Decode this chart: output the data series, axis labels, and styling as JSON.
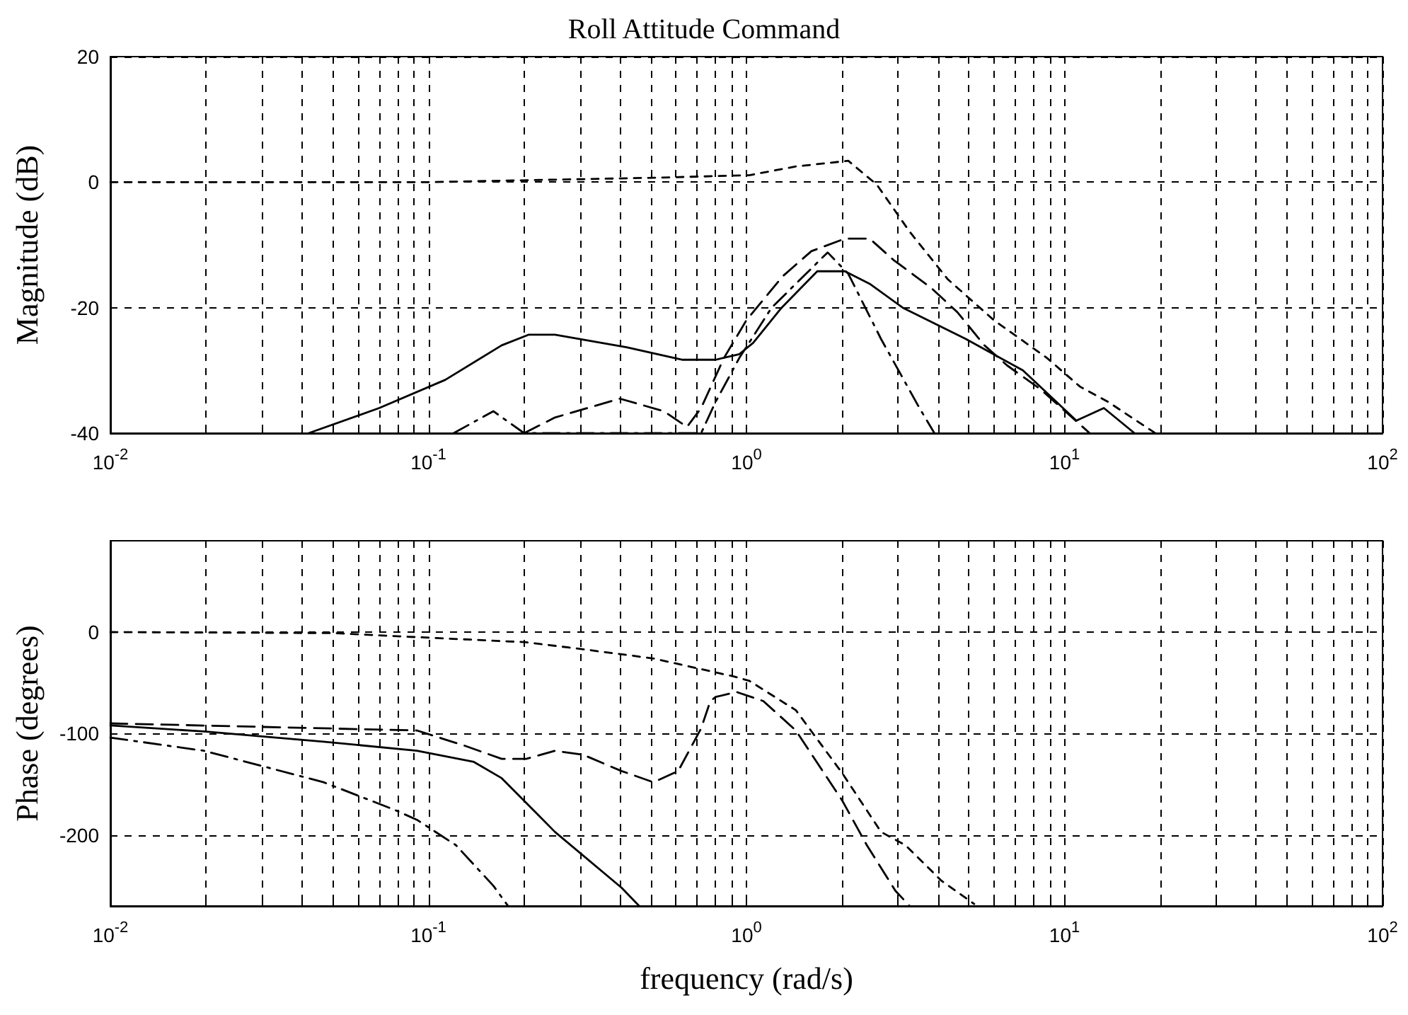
{
  "chart_data": [
    {
      "type": "line",
      "title": "Roll Attitude Command",
      "ylabel": "Magnitude (dB)",
      "log": "x",
      "grid": true,
      "marker": "none",
      "xlim": [
        0.01,
        100
      ],
      "ylim": [
        -40,
        20
      ],
      "yticks": [
        -40,
        -20,
        0,
        20
      ],
      "xticks": [
        {
          "value": 0.01,
          "label": "10$^{-2}$"
        },
        {
          "value": 0.02,
          "label": null
        },
        {
          "value": 0.03,
          "label": null
        },
        {
          "value": 0.04,
          "label": null
        },
        {
          "value": 0.05,
          "label": null
        },
        {
          "value": 0.06,
          "label": null
        },
        {
          "value": 0.07,
          "label": null
        },
        {
          "value": 0.08,
          "label": null
        },
        {
          "value": 0.09,
          "label": null
        },
        {
          "value": 0.1,
          "label": "10$^{-1}$"
        },
        {
          "value": 0.2,
          "label": null
        },
        {
          "value": 0.3,
          "label": null
        },
        {
          "value": 0.4,
          "label": null
        },
        {
          "value": 0.5,
          "label": null
        },
        {
          "value": 0.6,
          "label": null
        },
        {
          "value": 0.7,
          "label": null
        },
        {
          "value": 0.8,
          "label": null
        },
        {
          "value": 0.9,
          "label": null
        },
        {
          "value": 1,
          "label": "10$^{0}$"
        },
        {
          "value": 2,
          "label": null
        },
        {
          "value": 3,
          "label": null
        },
        {
          "value": 4,
          "label": null
        },
        {
          "value": 5,
          "label": null
        },
        {
          "value": 6,
          "label": null
        },
        {
          "value": 7,
          "label": null
        },
        {
          "value": 8,
          "label": null
        },
        {
          "value": 9,
          "label": null
        },
        {
          "value": 10,
          "label": "10$^{1}$"
        },
        {
          "value": 20,
          "label": null
        },
        {
          "value": 30,
          "label": null
        },
        {
          "value": 40,
          "label": null
        },
        {
          "value": 50,
          "label": null
        },
        {
          "value": 60,
          "label": null
        },
        {
          "value": 70,
          "label": null
        },
        {
          "value": 80,
          "label": null
        },
        {
          "value": 90,
          "label": null
        },
        {
          "value": 100,
          "label": "10$^{2}$"
        }
      ],
      "series": [
        {
          "color": "#000000",
          "line_style": "solid",
          "x": [
            0.042,
            0.07,
            0.113,
            0.17,
            0.207,
            0.25,
            0.42,
            0.63,
            0.8,
            0.95,
            1.05,
            1.29,
            1.67,
            2.04,
            2.44,
            3.1,
            4.9,
            7.4,
            10.9,
            13.3,
            16.6
          ],
          "values": [
            -40,
            -36,
            -31.5,
            -26,
            -24.3,
            -24.3,
            -26.3,
            -28.3,
            -28.3,
            -27.4,
            -25.6,
            -20,
            -14.2,
            -14.2,
            -16.2,
            -20,
            -25,
            -30,
            -38,
            -36,
            -40
          ]
        },
        {
          "color": "#000000",
          "line_style": "dotted",
          "x": [
            0.01,
            0.1,
            0.51,
            1.02,
            1.43,
            2.09,
            2.57,
            3.26,
            4.3,
            6,
            8.8,
            11.2,
            13.7,
            19.3
          ],
          "values": [
            0,
            0,
            0.7,
            1.1,
            2.5,
            3.4,
            -0.4,
            -7.9,
            -15.5,
            -22,
            -28,
            -32.6,
            -35,
            -40
          ]
        },
        {
          "color": "#000000",
          "line_style": "dashed",
          "x": [
            0.2,
            0.25,
            0.4,
            0.55,
            0.65,
            0.72,
            0.85,
            1,
            1.3,
            1.6,
            2.04,
            2.44,
            2.9,
            3.8,
            4.6,
            5.6,
            6.6,
            8.4,
            10,
            12
          ],
          "values": [
            -40,
            -37.5,
            -34.5,
            -36.5,
            -39,
            -36,
            -28,
            -22,
            -15,
            -11,
            -9,
            -9,
            -12.4,
            -16.8,
            -20.7,
            -26,
            -29.2,
            -33,
            -36.4,
            -40
          ]
        },
        {
          "color": "#000000",
          "line_style": "dashdot",
          "x": [
            0.12,
            0.16,
            0.2,
            0.72,
            0.8,
            0.95,
            1.2,
            1.8,
            2.09,
            2.65,
            3.5,
            3.9
          ],
          "values": [
            -40,
            -36.5,
            -40,
            -40,
            -35,
            -28,
            -20,
            -11.2,
            -14.6,
            -25,
            -36,
            -40
          ]
        }
      ]
    },
    {
      "type": "line",
      "xlabel": "frequency (rad/s)",
      "ylabel": "Phase (degrees)",
      "log": "x",
      "grid": true,
      "marker": "none",
      "xlim": [
        0.01,
        100
      ],
      "ylim": [
        -270,
        90
      ],
      "yticks": [
        -200,
        -100,
        0
      ],
      "xticks": [
        {
          "value": 0.01,
          "label": "10$^{-2}$"
        },
        {
          "value": 0.02,
          "label": null
        },
        {
          "value": 0.03,
          "label": null
        },
        {
          "value": 0.04,
          "label": null
        },
        {
          "value": 0.05,
          "label": null
        },
        {
          "value": 0.06,
          "label": null
        },
        {
          "value": 0.07,
          "label": null
        },
        {
          "value": 0.08,
          "label": null
        },
        {
          "value": 0.09,
          "label": null
        },
        {
          "value": 0.1,
          "label": "10$^{-1}$"
        },
        {
          "value": 0.2,
          "label": null
        },
        {
          "value": 0.3,
          "label": null
        },
        {
          "value": 0.4,
          "label": null
        },
        {
          "value": 0.5,
          "label": null
        },
        {
          "value": 0.6,
          "label": null
        },
        {
          "value": 0.7,
          "label": null
        },
        {
          "value": 0.8,
          "label": null
        },
        {
          "value": 0.9,
          "label": null
        },
        {
          "value": 1,
          "label": "10$^{0}$"
        },
        {
          "value": 2,
          "label": null
        },
        {
          "value": 3,
          "label": null
        },
        {
          "value": 4,
          "label": null
        },
        {
          "value": 5,
          "label": null
        },
        {
          "value": 6,
          "label": null
        },
        {
          "value": 7,
          "label": null
        },
        {
          "value": 8,
          "label": null
        },
        {
          "value": 9,
          "label": null
        },
        {
          "value": 10,
          "label": "10$^{1}$"
        },
        {
          "value": 20,
          "label": null
        },
        {
          "value": 30,
          "label": null
        },
        {
          "value": 40,
          "label": null
        },
        {
          "value": 50,
          "label": null
        },
        {
          "value": 60,
          "label": null
        },
        {
          "value": 70,
          "label": null
        },
        {
          "value": 80,
          "label": null
        },
        {
          "value": 90,
          "label": null
        },
        {
          "value": 100,
          "label": "10$^{2}$"
        }
      ],
      "series": [
        {
          "color": "#000000",
          "line_style": "solid",
          "x": [
            0.01,
            0.0197,
            0.0468,
            0.092,
            0.139,
            0.17,
            0.25,
            0.405,
            0.46
          ],
          "values": [
            -92,
            -98,
            -108,
            -117,
            -128,
            -144,
            -197,
            -252,
            -270
          ]
        },
        {
          "color": "#000000",
          "line_style": "dotted",
          "x": [
            0.01,
            0.05,
            0.092,
            0.203,
            0.307,
            0.51,
            0.92,
            1.02,
            1.43,
            2,
            2.65,
            3.16,
            4.1,
            5.2
          ],
          "values": [
            0,
            -1,
            -5,
            -10,
            -17,
            -26,
            -44,
            -48,
            -77,
            -139,
            -197,
            -210,
            -245,
            -268
          ]
        },
        {
          "color": "#000000",
          "line_style": "dashed",
          "x": [
            0.01,
            0.092,
            0.13,
            0.17,
            0.203,
            0.25,
            0.307,
            0.405,
            0.51,
            0.61,
            0.72,
            0.77,
            0.8,
            0.93,
            1.13,
            1.43,
            2,
            2.39,
            2.94,
            3.26
          ],
          "values": [
            -90,
            -97,
            -112,
            -125,
            -125,
            -117,
            -121,
            -137,
            -148,
            -137,
            -95,
            -68,
            -64,
            -59,
            -68,
            -97,
            -166,
            -210,
            -255,
            -270
          ]
        },
        {
          "color": "#000000",
          "line_style": "dashdot",
          "x": [
            0.01,
            0.0197,
            0.0468,
            0.078,
            0.092,
            0.122,
            0.16,
            0.178
          ],
          "values": [
            -104,
            -117,
            -148,
            -175,
            -185,
            -210,
            -250,
            -270
          ]
        }
      ]
    }
  ]
}
